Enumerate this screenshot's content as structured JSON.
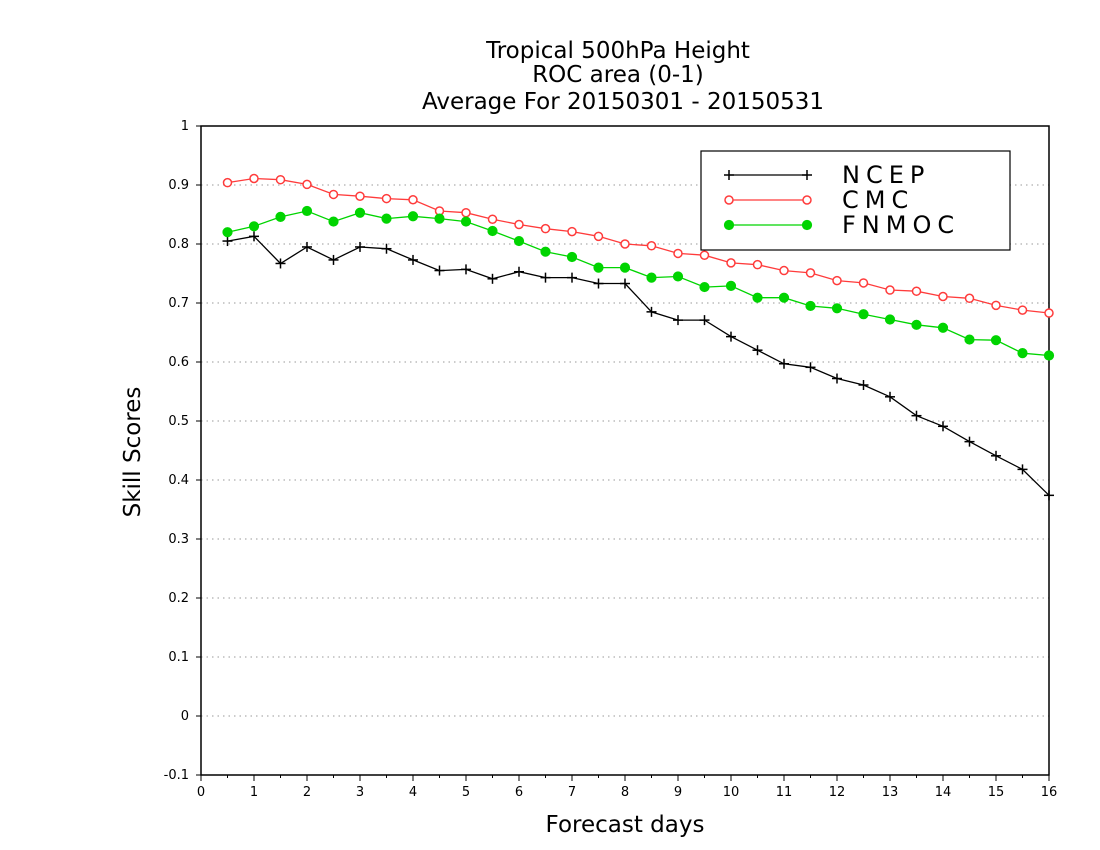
{
  "chart_data": {
    "type": "line",
    "title_lines": [
      "Tropical 500hPa Height",
      "ROC area (0-1)",
      "Average For 20150301 - 20150531"
    ],
    "xlabel": "Forecast days",
    "ylabel": "Skill Scores",
    "xlim": [
      0,
      16
    ],
    "ylim": [
      -0.1,
      1
    ],
    "x_ticks": [
      0,
      1,
      2,
      3,
      4,
      5,
      6,
      7,
      8,
      9,
      10,
      11,
      12,
      13,
      14,
      15,
      16
    ],
    "x_tick_labels": [
      "0",
      "1",
      "2",
      "3",
      "4",
      "5",
      "6",
      "7",
      "8",
      "9",
      "10",
      "11",
      "12",
      "13",
      "14",
      "15",
      "16"
    ],
    "y_ticks": [
      -0.1,
      0,
      0.1,
      0.2,
      0.3,
      0.4,
      0.5,
      0.6,
      0.7,
      0.8,
      0.9,
      1
    ],
    "y_tick_labels": [
      "-0.1",
      "0",
      "0.1",
      "0.2",
      "0.3",
      "0.4",
      "0.5",
      "0.6",
      "0.7",
      "0.8",
      "0.9",
      "1"
    ],
    "grid": "horizontal dotted",
    "legend_position": "top-right",
    "x": [
      0.5,
      1,
      1.5,
      2,
      2.5,
      3,
      3.5,
      4,
      4.5,
      5,
      5.5,
      6,
      6.5,
      7,
      7.5,
      8,
      8.5,
      9,
      9.5,
      10,
      10.5,
      11,
      11.5,
      12,
      12.5,
      13,
      13.5,
      14,
      14.5,
      15,
      15.5,
      16
    ],
    "series": [
      {
        "name": "NCEP",
        "color": "#000000",
        "marker": "plus",
        "values": [
          0.805,
          0.813,
          0.767,
          0.795,
          0.773,
          0.795,
          0.792,
          0.773,
          0.755,
          0.757,
          0.741,
          0.753,
          0.743,
          0.743,
          0.733,
          0.733,
          0.685,
          0.671,
          0.671,
          0.643,
          0.62,
          0.597,
          0.591,
          0.572,
          0.561,
          0.541,
          0.509,
          0.491,
          0.465,
          0.441,
          0.418,
          0.374
        ]
      },
      {
        "name": "CMC",
        "color": "#ff3b3b",
        "marker": "open-circle",
        "values": [
          0.904,
          0.911,
          0.909,
          0.901,
          0.884,
          0.881,
          0.877,
          0.875,
          0.856,
          0.853,
          0.842,
          0.833,
          0.826,
          0.821,
          0.813,
          0.8,
          0.797,
          0.784,
          0.781,
          0.768,
          0.765,
          0.755,
          0.751,
          0.738,
          0.734,
          0.722,
          0.72,
          0.711,
          0.708,
          0.696,
          0.688,
          0.683
        ]
      },
      {
        "name": "FNMOC",
        "color": "#00d400",
        "marker": "filled-circle",
        "values": [
          0.82,
          0.83,
          0.846,
          0.856,
          0.838,
          0.853,
          0.843,
          0.847,
          0.843,
          0.838,
          0.822,
          0.805,
          0.787,
          0.778,
          0.76,
          0.76,
          0.743,
          0.745,
          0.727,
          0.729,
          0.709,
          0.709,
          0.695,
          0.691,
          0.681,
          0.672,
          0.663,
          0.658,
          0.638,
          0.637,
          0.615,
          0.611
        ]
      }
    ]
  }
}
